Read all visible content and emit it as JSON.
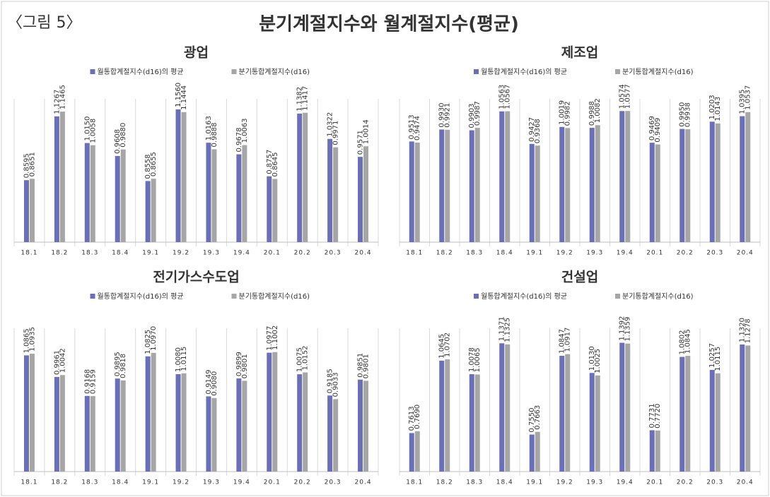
{
  "label": "〈그림 5〉",
  "title": "분기계절지수와 월계절지수(평균)",
  "chart_data": [
    {
      "type": "bar",
      "title": "광업",
      "categories": [
        "18.1",
        "18.2",
        "18.3",
        "18.4",
        "19.1",
        "19.2",
        "19.3",
        "19.4",
        "20.1",
        "20.2",
        "20.3",
        "20.4"
      ],
      "ylim": [
        0.6,
        1.2
      ],
      "series": [
        {
          "name": "월통합계절지수(d16)의 평균",
          "color": "#6b6fb5",
          "values": [
            0.8595,
            1.1267,
            1.015,
            0.9608,
            0.8558,
            1.156,
            1.0163,
            0.9678,
            0.8757,
            1.1382,
            1.0322,
            0.9571
          ],
          "value_labels": [
            "0.8595",
            "1.1267",
            "1.0150",
            "0.9608",
            "0.8558",
            "1.1560",
            "1.0163",
            "0.9678",
            "0.8757",
            "1.1382",
            "1.0322",
            "0.9571"
          ]
        },
        {
          "name": "분기통합계절지수(d16)",
          "color": "#a6a6a6",
          "values": [
            0.8651,
            1.1465,
            1.0058,
            0.988,
            0.8655,
            1.1444,
            0.9888,
            1.0063,
            0.8645,
            1.1417,
            0.9971,
            1.0014
          ],
          "value_labels": [
            "0.8651",
            "1.1465",
            "1.0058",
            "0.9880",
            "0.8655",
            "1.1444",
            "0.9888",
            "1.0063",
            "0.8645",
            "1.1417",
            "0.9971",
            "1.0014"
          ]
        }
      ]
    },
    {
      "type": "bar",
      "title": "제조업",
      "categories": [
        "18.1",
        "18.2",
        "18.3",
        "18.4",
        "19.1",
        "19.2",
        "19.3",
        "19.4",
        "20.1",
        "20.2",
        "20.3",
        "20.4"
      ],
      "ylim": [
        0.6,
        1.1
      ],
      "series": [
        {
          "name": "월통합계절지수(d16)의 평균",
          "color": "#6b6fb5",
          "values": [
            0.9513,
            0.993,
            0.9903,
            1.0563,
            0.9427,
            1.0019,
            0.9988,
            1.0574,
            0.9469,
            0.995,
            1.0203,
            1.0395
          ],
          "value_labels": [
            "0.9513",
            "0.9930",
            "0.9903",
            "1.0563",
            "0.9427",
            "1.0019",
            "0.9988",
            "1.0574",
            "0.9469",
            "0.9950",
            "1.0203",
            "1.0395"
          ]
        },
        {
          "name": "분기통합계절지수(d16)",
          "color": "#a6a6a6",
          "values": [
            0.9474,
            0.9921,
            0.9987,
            1.0567,
            0.9368,
            0.9982,
            1.0082,
            1.0577,
            0.9409,
            0.9938,
            1.0143,
            1.0537
          ],
          "value_labels": [
            "0.9474",
            "0.9921",
            "0.9987",
            "1.0567",
            "0.9368",
            "0.9982",
            "1.0082",
            "1.0577",
            "0.9409",
            "0.9938",
            "1.0143",
            "1.0537"
          ]
        }
      ]
    },
    {
      "type": "bar",
      "title": "전기가스수도업",
      "categories": [
        "18.1",
        "18.2",
        "18.3",
        "18.4",
        "19.1",
        "19.2",
        "19.3",
        "19.4",
        "20.1",
        "20.2",
        "20.3",
        "20.4"
      ],
      "ylim": [
        0.6,
        1.2
      ],
      "series": [
        {
          "name": "월통합계절지수(d16)의 평균",
          "color": "#6b6fb5",
          "values": [
            1.0865,
            0.9961,
            0.9168,
            0.9895,
            1.0825,
            1.008,
            0.9149,
            0.9899,
            1.0977,
            1.0075,
            0.9185,
            0.9851
          ],
          "value_labels": [
            "1.0865",
            "0.9961",
            "0.9168",
            "0.9895",
            "1.0825",
            "1.0080",
            "0.9149",
            "0.9899",
            "1.0977",
            "1.0075",
            "0.9185",
            "0.9851"
          ]
        },
        {
          "name": "분기통합계절지수(d16)",
          "color": "#a6a6a6",
          "values": [
            1.0935,
            1.0042,
            0.9159,
            0.9818,
            1.097,
            1.0115,
            0.908,
            0.9801,
            1.1002,
            1.0152,
            0.9033,
            0.9801
          ],
          "value_labels": [
            "1.0935",
            "1.0042",
            "0.9159",
            "0.9818",
            "1.0970",
            "1.0115",
            "0.9080",
            "0.9801",
            "1.1002",
            "1.0152",
            "0.9033",
            "0.9801"
          ]
        }
      ]
    },
    {
      "type": "bar",
      "title": "건설업",
      "categories": [
        "18.1",
        "18.2",
        "18.3",
        "18.4",
        "19.1",
        "19.2",
        "19.3",
        "19.4",
        "20.1",
        "20.2",
        "20.3",
        "20.4"
      ],
      "ylim": [
        0.6,
        1.2
      ],
      "series": [
        {
          "name": "월통합계절지수(d16)의 평균",
          "color": "#6b6fb5",
          "values": [
            0.7613,
            1.0645,
            1.0078,
            1.1371,
            0.755,
            1.0847,
            1.013,
            1.1392,
            0.7731,
            1.0802,
            1.0257,
            1.132
          ],
          "value_labels": [
            "0.7613",
            "1.0645",
            "1.0078",
            "1.1371",
            "0.7550",
            "1.0847",
            "1.0130",
            "1.1392",
            "0.7731",
            "1.0802",
            "1.0257",
            "1.1320"
          ]
        },
        {
          "name": "분기통합계절지수(d16)",
          "color": "#a6a6a6",
          "values": [
            0.769,
            1.0702,
            1.0065,
            1.1325,
            0.7663,
            1.0917,
            1.0025,
            1.1359,
            0.772,
            1.0845,
            1.0115,
            1.1278
          ],
          "value_labels": [
            "0.7690",
            "1.0702",
            "1.0065",
            "1.1325",
            "0.7663",
            "1.0917",
            "1.0025",
            "1.1359",
            "0.7720",
            "1.0845",
            "1.0115",
            "1.1278"
          ]
        }
      ]
    }
  ]
}
